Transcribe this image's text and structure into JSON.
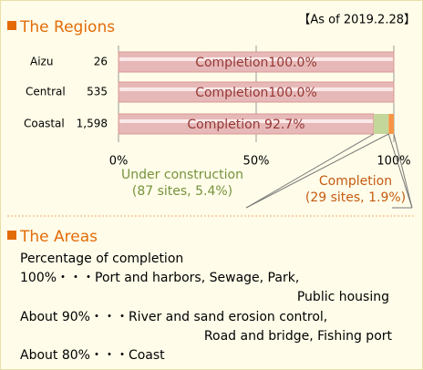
{
  "chart_data": {
    "type": "hbar_stacked",
    "title": "The Regions",
    "subtitle": "【As of 2019.2.28】",
    "categories": [
      "Aizu",
      "Central",
      "Coastal"
    ],
    "counts": [
      26,
      535,
      {
        "value": 1598,
        "label": "1,598"
      }
    ],
    "series": [
      {
        "name": "Completion",
        "color": "#e6b9b8",
        "values": [
          100.0,
          100.0,
          92.7
        ],
        "value_labels": [
          "Completion100.0%",
          "Completion100.0%",
          "Completion  92.7%"
        ]
      },
      {
        "name": "Under construction",
        "color": "#c4d79b",
        "values": [
          null,
          null,
          5.4
        ],
        "annotation": "(87 sites, 5.4%)"
      },
      {
        "name": "Completion",
        "color": "#f79646",
        "values": [
          null,
          null,
          1.9
        ],
        "annotation": "(29 sites, 1.9%)"
      }
    ],
    "xlim": [
      0,
      100
    ],
    "xticks": [
      {
        "value": 0,
        "label": "0%"
      },
      {
        "value": 50,
        "label": "50%"
      },
      {
        "value": 100,
        "label": "100%"
      }
    ],
    "grid": true
  },
  "areas": {
    "title": "The Areas",
    "lines": [
      "Percentage of completion",
      "100%・・・Port and harbors, Sewage, Park,",
      "Public housing",
      "About 90%・・・River and sand erosion control,",
      "Road and bridge, Fishing port",
      "About 80%・・・Coast"
    ]
  }
}
